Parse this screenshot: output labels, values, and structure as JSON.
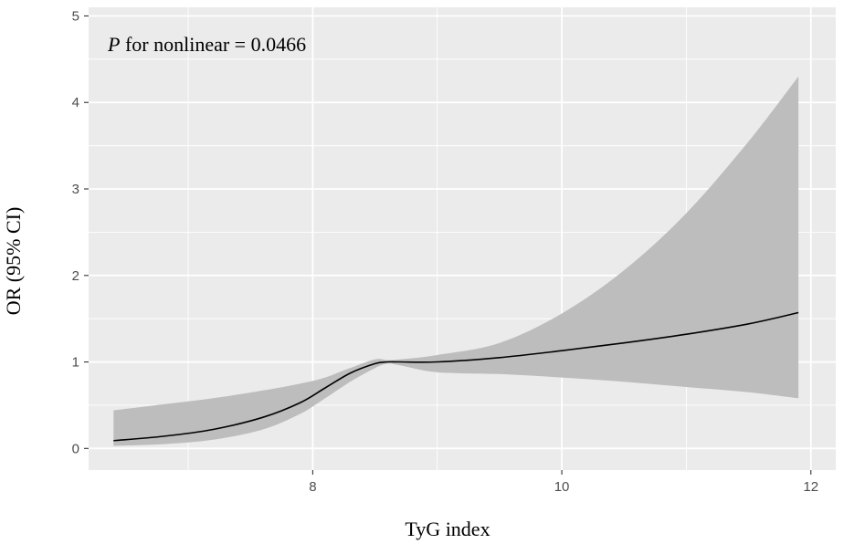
{
  "chart_data": {
    "type": "line",
    "title": "",
    "xlabel": "TyG index",
    "ylabel": "OR (95% CI)",
    "xlim": [
      6.2,
      12.2
    ],
    "ylim": [
      -0.25,
      5.1
    ],
    "x_ticks": [
      8,
      10,
      12
    ],
    "y_ticks": [
      0,
      1,
      2,
      3,
      4,
      5
    ],
    "grid": true,
    "annotation": {
      "italic_part": "P",
      "rest": " for nonlinear = 0.0466"
    },
    "series": [
      {
        "x": [
          6.4,
          6.8,
          7.2,
          7.6,
          7.9,
          8.1,
          8.3,
          8.5,
          8.6,
          8.7,
          9.0,
          9.5,
          10.0,
          10.5,
          11.0,
          11.5,
          11.9
        ],
        "y": [
          0.09,
          0.14,
          0.22,
          0.36,
          0.53,
          0.7,
          0.87,
          0.98,
          1.0,
          1.0,
          1.0,
          1.05,
          1.13,
          1.22,
          1.32,
          1.44,
          1.57
        ],
        "lower": [
          0.03,
          0.05,
          0.1,
          0.22,
          0.4,
          0.58,
          0.77,
          0.93,
          0.98,
          0.96,
          0.88,
          0.86,
          0.82,
          0.77,
          0.71,
          0.65,
          0.58
        ],
        "upper": [
          0.44,
          0.51,
          0.58,
          0.67,
          0.75,
          0.82,
          0.93,
          1.03,
          1.02,
          1.03,
          1.08,
          1.22,
          1.56,
          2.06,
          2.72,
          3.55,
          4.3
        ]
      }
    ],
    "colors": {
      "panel_background": "#ebebeb",
      "grid": "#ffffff",
      "ribbon": "#bdbdbd",
      "line": "#000000"
    }
  }
}
